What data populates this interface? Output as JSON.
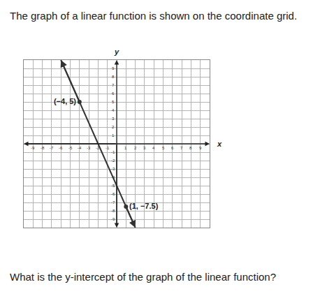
{
  "intro": "The graph of a linear function is shown on the coordinate grid.",
  "question": "What is the y-intercept of the graph of the linear function?",
  "chart_data": {
    "type": "line",
    "x_label": "x",
    "y_label": "y",
    "x": [
      -6,
      -4,
      1,
      2
    ],
    "values": [
      10,
      5,
      -7.5,
      -10
    ],
    "points": [
      {
        "x": -4,
        "y": 5,
        "label": "(−4, 5)"
      },
      {
        "x": 1,
        "y": -7.5,
        "label": "(1, −7.5)"
      }
    ],
    "color": "#333333",
    "xlim": [
      -10,
      10
    ],
    "ylim": [
      -10,
      10
    ],
    "xticks": [
      -9,
      -8,
      -7,
      -6,
      -5,
      -4,
      -3,
      -2,
      -1,
      1,
      2,
      3,
      4,
      5,
      6,
      7,
      8,
      9
    ],
    "yticks": [
      -9,
      -8,
      -7,
      -6,
      -5,
      -4,
      -3,
      -2,
      -1,
      1,
      2,
      3,
      4,
      5,
      6,
      7,
      8,
      9
    ],
    "grid": true
  }
}
